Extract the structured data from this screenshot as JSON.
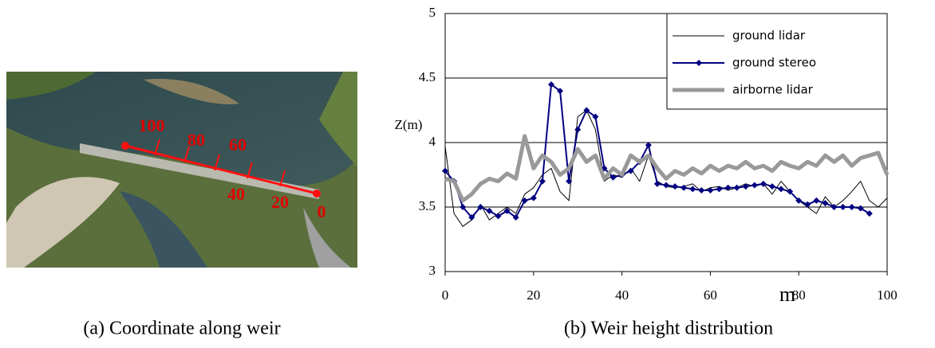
{
  "figure_a": {
    "labels": [
      "100",
      "80",
      "60",
      "40",
      "20",
      "0"
    ],
    "caption": "(a) Coordinate along weir"
  },
  "figure_b": {
    "caption": "(b) Weir height distribution"
  },
  "chart_data": {
    "type": "line",
    "ylabel": "Z(m)",
    "xlabel": "m",
    "xlim": [
      0,
      100
    ],
    "xticks": [
      0,
      20,
      40,
      60,
      80,
      100
    ],
    "ylim": [
      3,
      5
    ],
    "yticks": [
      3,
      3.5,
      4,
      4.5,
      5
    ],
    "grid": true,
    "legend": "upper right",
    "x": [
      0,
      2,
      4,
      6,
      8,
      10,
      12,
      14,
      16,
      18,
      20,
      22,
      24,
      26,
      28,
      30,
      32,
      34,
      36,
      38,
      40,
      42,
      44,
      46,
      48,
      50,
      52,
      54,
      56,
      58,
      60,
      62,
      64,
      66,
      68,
      70,
      72,
      74,
      76,
      78,
      80,
      82,
      84,
      86,
      88,
      90,
      92,
      94,
      96,
      98,
      100
    ],
    "series": [
      {
        "name": "ground lidar",
        "color": "#000000",
        "line_width": 1,
        "values": [
          3.97,
          3.45,
          3.35,
          3.4,
          3.52,
          3.4,
          3.45,
          3.5,
          3.45,
          3.6,
          3.65,
          3.75,
          3.8,
          3.62,
          3.55,
          4.2,
          4.25,
          4.1,
          3.7,
          3.75,
          3.73,
          3.8,
          3.7,
          3.9,
          3.7,
          3.66,
          3.65,
          3.66,
          3.68,
          3.62,
          3.65,
          3.66,
          3.63,
          3.65,
          3.68,
          3.66,
          3.68,
          3.6,
          3.7,
          3.62,
          3.55,
          3.5,
          3.45,
          3.58,
          3.5,
          3.55,
          3.62,
          3.7,
          3.55,
          3.5,
          3.57
        ]
      },
      {
        "name": "ground stereo",
        "color": "#000080",
        "line_width": 2,
        "marker": "diamond",
        "values": [
          3.78,
          3.7,
          3.5,
          3.42,
          3.5,
          3.47,
          3.43,
          3.47,
          3.42,
          3.55,
          3.57,
          3.7,
          4.45,
          4.4,
          3.7,
          4.1,
          4.25,
          4.2,
          3.8,
          3.73,
          3.75,
          3.78,
          3.85,
          3.98,
          3.68,
          3.67,
          3.66,
          3.65,
          3.64,
          3.63,
          3.63,
          3.64,
          3.65,
          3.65,
          3.66,
          3.67,
          3.68,
          3.66,
          3.64,
          3.62,
          3.55,
          3.52,
          3.55,
          3.53,
          3.5,
          3.5,
          3.5,
          3.49,
          3.45,
          null,
          null
        ]
      },
      {
        "name": "airborne lidar",
        "color": "#999999",
        "line_width": 5,
        "values": [
          3.72,
          3.7,
          3.55,
          3.6,
          3.68,
          3.72,
          3.7,
          3.76,
          3.72,
          4.05,
          3.8,
          3.9,
          3.85,
          3.75,
          3.8,
          3.95,
          3.85,
          3.9,
          3.72,
          3.8,
          3.75,
          3.9,
          3.85,
          3.9,
          3.8,
          3.72,
          3.78,
          3.75,
          3.8,
          3.76,
          3.82,
          3.78,
          3.82,
          3.8,
          3.85,
          3.8,
          3.82,
          3.78,
          3.85,
          3.82,
          3.8,
          3.85,
          3.82,
          3.9,
          3.85,
          3.9,
          3.82,
          3.88,
          3.9,
          3.92,
          3.75
        ]
      }
    ]
  }
}
